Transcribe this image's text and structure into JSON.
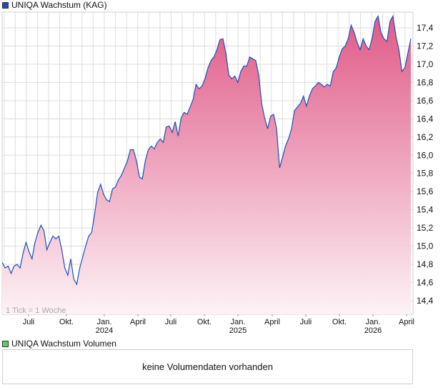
{
  "legend": {
    "price_label": "UNIQA Wachstum (KAG)",
    "price_color": "#1f4fb5",
    "volume_label": "UNIQA Wachstum Volumen",
    "volume_color": "#5fcf5f"
  },
  "volume_panel": {
    "message": "keine Volumendaten vorhanden"
  },
  "chart_data": {
    "type": "area",
    "title": "UNIQA Wachstum (KAG)",
    "note": "1 Tick = 1 Woche",
    "ylim": [
      14.25,
      17.57
    ],
    "yticks": [
      14.4,
      14.6,
      14.8,
      15.0,
      15.2,
      15.4,
      15.6,
      15.8,
      16.0,
      16.2,
      16.4,
      16.6,
      16.8,
      17.0,
      17.2,
      17.4
    ],
    "ytick_labels": [
      "14,4",
      "14,6",
      "14,8",
      "15,0",
      "15,2",
      "15,4",
      "15,6",
      "15,8",
      "16,0",
      "16,2",
      "16,4",
      "16,6",
      "16,8",
      "17,0",
      "17,2",
      "17,4"
    ],
    "xtick_labels": [
      {
        "label": "Juli",
        "year": ""
      },
      {
        "label": "Okt.",
        "year": ""
      },
      {
        "label": "Jan.",
        "year": "2024"
      },
      {
        "label": "April",
        "year": ""
      },
      {
        "label": "Juli",
        "year": ""
      },
      {
        "label": "Okt.",
        "year": ""
      },
      {
        "label": "Jan.",
        "year": "2025"
      },
      {
        "label": "April",
        "year": ""
      },
      {
        "label": "Juli",
        "year": ""
      },
      {
        "label": "Okt.",
        "year": ""
      },
      {
        "label": "Jan.",
        "year": "2026"
      },
      {
        "label": "April",
        "year": ""
      }
    ],
    "x_range_years": [
      2023.23,
      2026.29
    ],
    "line_color": "#1f4fb5",
    "fill_top": "#e05a88",
    "fill_bottom": "#fdf2f6",
    "values": [
      14.82,
      14.76,
      14.78,
      14.7,
      14.78,
      14.8,
      14.76,
      14.92,
      15.04,
      14.94,
      14.86,
      15.04,
      15.15,
      15.23,
      15.17,
      14.96,
      15.04,
      15.11,
      15.08,
      15.11,
      14.96,
      14.76,
      14.68,
      14.86,
      14.64,
      14.58,
      14.76,
      14.88,
      15.0,
      15.11,
      15.15,
      15.35,
      15.59,
      15.68,
      15.57,
      15.51,
      15.49,
      15.63,
      15.65,
      15.73,
      15.78,
      15.86,
      15.94,
      16.06,
      16.06,
      15.94,
      15.76,
      15.74,
      15.94,
      16.06,
      16.1,
      16.07,
      16.14,
      16.18,
      16.14,
      16.31,
      16.32,
      16.25,
      16.37,
      16.21,
      16.41,
      16.47,
      16.45,
      16.53,
      16.61,
      16.78,
      16.73,
      16.76,
      16.84,
      16.96,
      17.04,
      17.08,
      17.16,
      17.27,
      17.28,
      17.12,
      16.88,
      16.84,
      16.87,
      16.8,
      16.92,
      16.98,
      16.98,
      17.08,
      17.06,
      17.04,
      16.88,
      16.57,
      16.41,
      16.29,
      16.43,
      16.45,
      16.29,
      15.86,
      15.98,
      16.1,
      16.18,
      16.29,
      16.49,
      16.53,
      16.57,
      16.65,
      16.54,
      16.65,
      16.73,
      16.76,
      16.8,
      16.78,
      16.75,
      16.78,
      16.76,
      16.92,
      16.96,
      17.08,
      17.17,
      17.2,
      17.28,
      17.43,
      17.35,
      17.24,
      17.16,
      17.28,
      17.2,
      17.16,
      17.28,
      17.47,
      17.53,
      17.35,
      17.28,
      17.25,
      17.47,
      17.53,
      17.31,
      17.16,
      16.92,
      16.96,
      17.12,
      17.28
    ]
  }
}
